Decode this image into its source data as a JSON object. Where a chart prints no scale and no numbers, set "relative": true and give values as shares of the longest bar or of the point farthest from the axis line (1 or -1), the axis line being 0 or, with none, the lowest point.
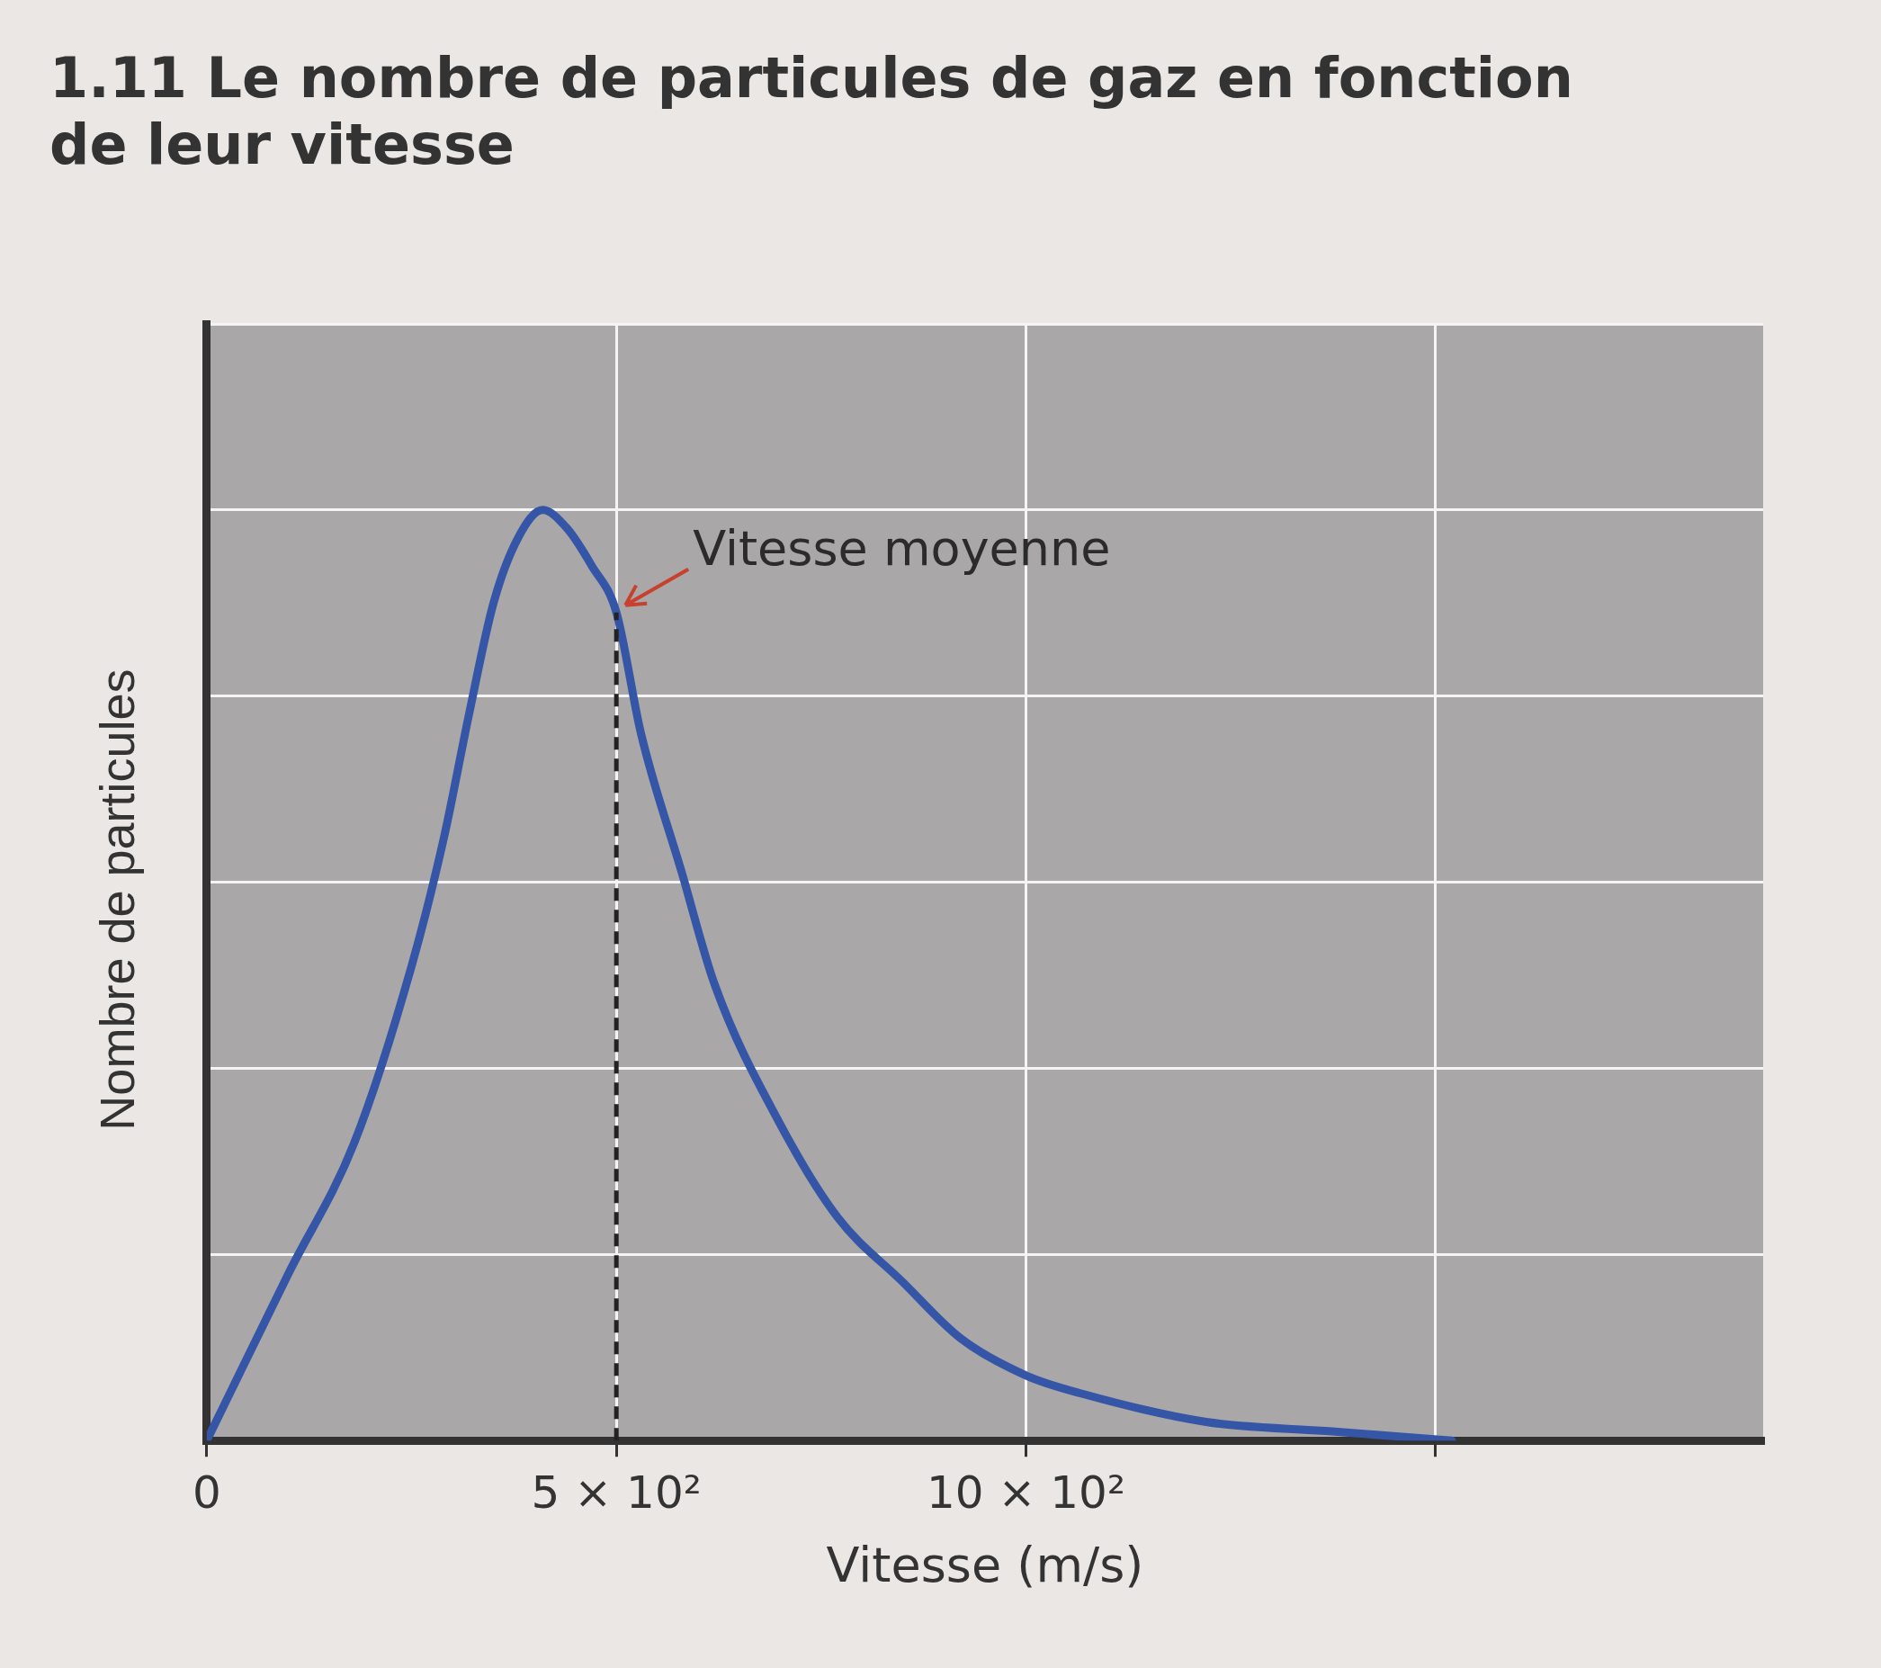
{
  "chart_data": {
    "type": "line",
    "title": "1.11 Le nombre de particules de gaz en fonction de leur vitesse",
    "xlabel": "Vitesse (m/s)",
    "ylabel": "Nombre de particules",
    "relative": true,
    "x": [
      0,
      100,
      180,
      250,
      290,
      320,
      350,
      380,
      410,
      440,
      470,
      500,
      530,
      580,
      620,
      700,
      770,
      850,
      920,
      1000,
      1070,
      1220,
      1370,
      1520
    ],
    "series": [
      {
        "color": "#3556a6",
        "values": [
          0,
          0.18,
          0.32,
          0.51,
          0.65,
          0.78,
          0.9,
          0.97,
          1,
          0.98,
          0.94,
          0.89,
          0.76,
          0.61,
          0.49,
          0.34,
          0.24,
          0.17,
          0.11,
          0.07,
          0.05,
          0.02,
          0.01,
          0
        ]
      }
    ],
    "xlim": [
      0,
      1900
    ],
    "xticks": [
      {
        "value": 0,
        "label": "0"
      },
      {
        "value": 500,
        "label": "5 × 10²"
      },
      {
        "value": 1000,
        "label": "10 × 10²"
      },
      {
        "value": 1500,
        "label": null
      }
    ],
    "grid": true,
    "marker": "none",
    "line_style": "solid",
    "ref_lines": [
      {
        "axis": "x",
        "value": 500,
        "color": "#222222",
        "line_style": "dashed"
      }
    ],
    "annotations": [
      {
        "text": "Vitesse moyenne",
        "x": 500,
        "y": 0.89
      }
    ]
  }
}
